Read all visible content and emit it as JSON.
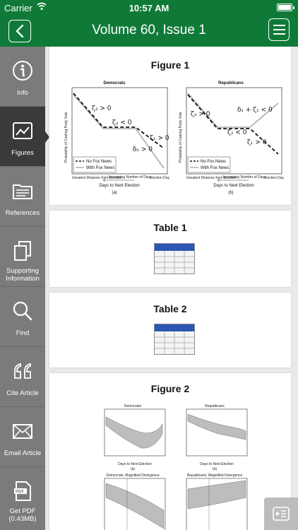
{
  "status_bar": {
    "carrier": "Carrier",
    "time": "10:57 AM"
  },
  "nav": {
    "title": "Volume 60, Issue 1"
  },
  "sidebar": {
    "items": [
      {
        "label": "Info",
        "icon": "info-icon"
      },
      {
        "label": "Figures",
        "icon": "figures-icon",
        "active": true
      },
      {
        "label": "References",
        "icon": "references-icon"
      },
      {
        "label": "Supporting Information",
        "icon": "supporting-info-icon"
      },
      {
        "label": "Find",
        "icon": "search-icon"
      },
      {
        "label": "Cite Article",
        "icon": "quote-icon"
      },
      {
        "label": "Email Article",
        "icon": "envelope-icon"
      },
      {
        "label": "Get PDF (0.43MB)",
        "icon": "pdf-icon"
      }
    ]
  },
  "cards": [
    {
      "title": "Figure 1",
      "panels": [
        {
          "title": "Democrats",
          "ylabel": "Probability of Casting Party Vote",
          "annotations": [
            "ζ₃ > 0",
            "ζ₂ < 0",
            "ζ₁ > 0",
            "δ₁ > 0"
          ],
          "legend": [
            "No Fox News",
            "With Fox News"
          ],
          "x_left": "Greatest Distance from Election",
          "x_mid": "Increasing Number of Days",
          "x_right": "Election Day",
          "xlabel": "Days to Next Election",
          "caption": "(a)"
        },
        {
          "title": "Republicans",
          "ylabel": "Probability of Casting Party Vote",
          "annotations": [
            "ζ₃ > 0",
            "ζ₂ < 0",
            "δ₁ + ζ₁ < 0",
            "ζ₁ > 0"
          ],
          "legend": [
            "No Fox News",
            "With Fox News"
          ],
          "x_left": "Greatest Distance from Election",
          "x_mid": "Increasing Number of Days",
          "x_right": "Election Day",
          "xlabel": "Days to Next Election",
          "caption": "(b)"
        }
      ]
    },
    {
      "title": "Table 1"
    },
    {
      "title": "Table 2"
    },
    {
      "title": "Figure 2",
      "panels": [
        {
          "title": "Democrats",
          "xlabel": "Days to Next Election",
          "caption": "(a)"
        },
        {
          "title": "Republicans",
          "xlabel": "Days to Next Election",
          "caption": "(b)"
        },
        {
          "title": "Democrats: Magnified Divergence"
        },
        {
          "title": "Republicans: Magnified Divergence"
        }
      ]
    }
  ]
}
